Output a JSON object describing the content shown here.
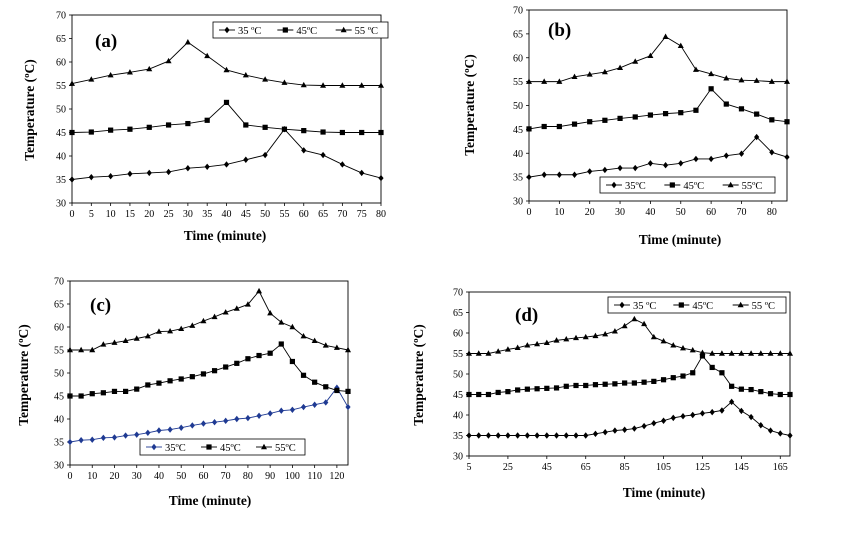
{
  "figure": {
    "panel_labels": [
      "(a)",
      "(b)",
      "(c)",
      "(d)"
    ]
  },
  "chart_data": [
    {
      "type": "line",
      "panel": "(a)",
      "xlabel": "Time (minute)",
      "ylabel": "Temperature (ºC)",
      "xlim": [
        0,
        80
      ],
      "ylim": [
        30,
        70
      ],
      "xticks": [
        0,
        5,
        10,
        15,
        20,
        25,
        30,
        35,
        40,
        45,
        50,
        55,
        60,
        65,
        70,
        75,
        80
      ],
      "yticks": [
        30,
        35,
        40,
        45,
        50,
        55,
        60,
        65,
        70
      ],
      "grid": false,
      "legend_position": "top-right",
      "series": [
        {
          "name": "35 ºC",
          "marker": "diamond",
          "color": "#000000",
          "x": [
            0,
            5,
            10,
            15,
            20,
            25,
            30,
            35,
            40,
            45,
            50,
            55,
            60,
            65,
            70,
            75,
            80
          ],
          "y": [
            35,
            35.5,
            35.7,
            36.2,
            36.4,
            36.6,
            37.4,
            37.7,
            38.2,
            39.2,
            40.2,
            45.7,
            41.2,
            40.2,
            38.2,
            36.4,
            35.3
          ]
        },
        {
          "name": "45ºC",
          "marker": "square",
          "color": "#000000",
          "x": [
            0,
            5,
            10,
            15,
            20,
            25,
            30,
            35,
            40,
            45,
            50,
            55,
            60,
            65,
            70,
            75,
            80
          ],
          "y": [
            45,
            45.1,
            45.5,
            45.7,
            46.1,
            46.6,
            46.9,
            47.6,
            51.4,
            46.6,
            46.1,
            45.7,
            45.4,
            45.1,
            45,
            45,
            45
          ]
        },
        {
          "name": "55 ºC",
          "marker": "triangle",
          "color": "#000000",
          "x": [
            0,
            5,
            10,
            15,
            20,
            25,
            30,
            35,
            40,
            45,
            50,
            55,
            60,
            65,
            70,
            75,
            80
          ],
          "y": [
            55.4,
            56.3,
            57.2,
            57.8,
            58.5,
            60.2,
            64.2,
            61.3,
            58.3,
            57.2,
            56.3,
            55.6,
            55.1,
            55,
            55,
            55,
            55
          ]
        }
      ]
    },
    {
      "type": "line",
      "panel": "(b)",
      "xlabel": "Time (minute)",
      "ylabel": "Temperature (ºC)",
      "xlim": [
        0,
        85
      ],
      "ylim": [
        30,
        70
      ],
      "xticks": [
        0,
        10,
        20,
        30,
        40,
        50,
        60,
        70,
        80
      ],
      "yticks": [
        30,
        35,
        40,
        45,
        50,
        55,
        60,
        65,
        70
      ],
      "grid": false,
      "legend_position": "bottom-right",
      "series": [
        {
          "name": "35ºC",
          "marker": "diamond",
          "color": "#000000",
          "x": [
            0,
            5,
            10,
            15,
            20,
            25,
            30,
            35,
            40,
            45,
            50,
            55,
            60,
            65,
            70,
            75,
            80,
            85
          ],
          "y": [
            35,
            35.5,
            35.5,
            35.5,
            36.2,
            36.5,
            36.9,
            36.9,
            37.9,
            37.5,
            37.9,
            38.8,
            38.8,
            39.5,
            39.9,
            43.4,
            40.2,
            39.2
          ]
        },
        {
          "name": "45ºC",
          "marker": "square",
          "color": "#000000",
          "x": [
            0,
            5,
            10,
            15,
            20,
            25,
            30,
            35,
            40,
            45,
            50,
            55,
            60,
            65,
            70,
            75,
            80,
            85
          ],
          "y": [
            45.1,
            45.6,
            45.6,
            46.1,
            46.6,
            46.9,
            47.3,
            47.6,
            48,
            48.3,
            48.5,
            49,
            53.5,
            50.3,
            49.3,
            48.2,
            47,
            46.6
          ]
        },
        {
          "name": "55ºC",
          "marker": "triangle",
          "color": "#000000",
          "x": [
            0,
            5,
            10,
            15,
            20,
            25,
            30,
            35,
            40,
            45,
            50,
            55,
            60,
            65,
            70,
            75,
            80,
            85
          ],
          "y": [
            55,
            55,
            55,
            56,
            56.5,
            57,
            57.9,
            59.2,
            60.4,
            64.4,
            62.5,
            57.5,
            56.6,
            55.7,
            55.3,
            55.2,
            55,
            55
          ]
        }
      ]
    },
    {
      "type": "line",
      "panel": "(c)",
      "xlabel": "Time (minute)",
      "ylabel": "Temperature (ºC)",
      "xlim": [
        0,
        125
      ],
      "ylim": [
        30,
        70
      ],
      "xticks": [
        0,
        10,
        20,
        30,
        40,
        50,
        60,
        70,
        80,
        90,
        100,
        110,
        120
      ],
      "yticks": [
        30,
        35,
        40,
        45,
        50,
        55,
        60,
        65,
        70
      ],
      "grid": false,
      "legend_position": "bottom-center",
      "series": [
        {
          "name": "35ºC",
          "marker": "diamond",
          "color": "#1f3a93",
          "x": [
            0,
            5,
            10,
            15,
            20,
            25,
            30,
            35,
            40,
            45,
            50,
            55,
            60,
            65,
            70,
            75,
            80,
            85,
            90,
            95,
            100,
            105,
            110,
            115,
            120,
            125
          ],
          "y": [
            35,
            35.4,
            35.5,
            35.9,
            36,
            36.4,
            36.6,
            37,
            37.5,
            37.7,
            38.1,
            38.6,
            39,
            39.3,
            39.6,
            40,
            40.2,
            40.7,
            41.2,
            41.8,
            42,
            42.6,
            43.1,
            43.6,
            46.8,
            42.6
          ]
        },
        {
          "name": "45ºC",
          "marker": "square",
          "color": "#000000",
          "x": [
            0,
            5,
            10,
            15,
            20,
            25,
            30,
            35,
            40,
            45,
            50,
            55,
            60,
            65,
            70,
            75,
            80,
            85,
            90,
            95,
            100,
            105,
            110,
            115,
            120,
            125
          ],
          "y": [
            45,
            45,
            45.5,
            45.7,
            46,
            46,
            46.5,
            47.4,
            47.8,
            48.3,
            48.7,
            49.2,
            49.8,
            50.5,
            51.3,
            52.1,
            53.1,
            53.8,
            54.3,
            56.3,
            52.5,
            49.5,
            48,
            47,
            46.2,
            46
          ]
        },
        {
          "name": "55ºC",
          "marker": "triangle",
          "color": "#000000",
          "x": [
            0,
            5,
            10,
            15,
            20,
            25,
            30,
            35,
            40,
            45,
            50,
            55,
            60,
            65,
            70,
            75,
            80,
            85,
            90,
            95,
            100,
            105,
            110,
            115,
            120,
            125
          ],
          "y": [
            55,
            55,
            55,
            56.2,
            56.6,
            57,
            57.5,
            58,
            59,
            59.1,
            59.6,
            60.3,
            61.3,
            62.2,
            63.2,
            64,
            64.9,
            67.8,
            63,
            61,
            60,
            58,
            57,
            56,
            55.5,
            55
          ]
        }
      ]
    },
    {
      "type": "line",
      "panel": "(d)",
      "xlabel": "Time (minute)",
      "ylabel": "Temperature (ºC)",
      "xlim": [
        5,
        170
      ],
      "ylim": [
        30,
        70
      ],
      "xticks": [
        5,
        25,
        45,
        65,
        85,
        105,
        125,
        145,
        165
      ],
      "yticks": [
        30,
        35,
        40,
        45,
        50,
        55,
        60,
        65,
        70
      ],
      "grid": false,
      "legend_position": "top-right",
      "series": [
        {
          "name": "35 ºC",
          "marker": "diamond",
          "color": "#000000",
          "x": [
            5,
            10,
            15,
            20,
            25,
            30,
            35,
            40,
            45,
            50,
            55,
            60,
            65,
            70,
            75,
            80,
            85,
            90,
            95,
            100,
            105,
            110,
            115,
            120,
            125,
            130,
            135,
            140,
            145,
            150,
            155,
            160,
            165,
            170
          ],
          "y": [
            35,
            35,
            35,
            35,
            35,
            35,
            35,
            35,
            35,
            35,
            35,
            35,
            35,
            35.4,
            35.8,
            36.2,
            36.4,
            36.7,
            37.3,
            38,
            38.6,
            39.3,
            39.7,
            40,
            40.4,
            40.7,
            41.1,
            43.2,
            41,
            39.5,
            37.5,
            36.2,
            35.5,
            35
          ]
        },
        {
          "name": "45ºC",
          "marker": "square",
          "color": "#000000",
          "x": [
            5,
            10,
            15,
            20,
            25,
            30,
            35,
            40,
            45,
            50,
            55,
            60,
            65,
            70,
            75,
            80,
            85,
            90,
            95,
            100,
            105,
            110,
            115,
            120,
            125,
            130,
            135,
            140,
            145,
            150,
            155,
            160,
            165,
            170
          ],
          "y": [
            45,
            45,
            45,
            45.5,
            45.7,
            46.1,
            46.3,
            46.4,
            46.5,
            46.6,
            47,
            47.2,
            47.2,
            47.4,
            47.5,
            47.6,
            47.8,
            47.8,
            48,
            48.2,
            48.6,
            49.1,
            49.5,
            50.3,
            54.4,
            51.6,
            50.3,
            47,
            46.3,
            46.2,
            45.7,
            45.2,
            45,
            45
          ]
        },
        {
          "name": "55 ºC",
          "marker": "triangle",
          "color": "#000000",
          "x": [
            5,
            10,
            15,
            20,
            25,
            30,
            35,
            40,
            45,
            50,
            55,
            60,
            65,
            70,
            75,
            80,
            85,
            90,
            95,
            100,
            105,
            110,
            115,
            120,
            125,
            130,
            135,
            140,
            145,
            150,
            155,
            160,
            165,
            170
          ],
          "y": [
            55,
            55,
            55,
            55.5,
            56,
            56.4,
            57,
            57.3,
            57.6,
            58.2,
            58.5,
            58.8,
            59,
            59.3,
            59.7,
            60.4,
            61.7,
            63.4,
            62.2,
            59,
            58,
            57,
            56.3,
            55.8,
            55.2,
            55,
            55,
            55,
            55,
            55,
            55,
            55,
            55,
            55
          ]
        }
      ]
    }
  ]
}
